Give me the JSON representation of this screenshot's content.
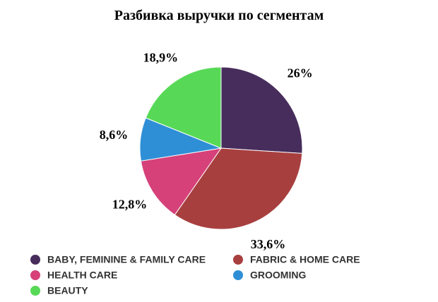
{
  "chart_data": {
    "type": "pie",
    "title": "Разбивка выручки по сегментам",
    "categories": [
      "BABY, FEMININE & FAMILY CARE",
      "FABRIC & HOME CARE",
      "HEALTH CARE",
      "GROOMING",
      "BEAUTY"
    ],
    "values": [
      26,
      33.6,
      12.8,
      8.6,
      18.9
    ],
    "value_labels": [
      "26%",
      "33,6%",
      "12,8%",
      "8,6%",
      "18,9%"
    ],
    "colors": [
      "#472d5c",
      "#a83f3f",
      "#d6417a",
      "#2f8fd6",
      "#57d957"
    ],
    "legend": "bottom"
  }
}
